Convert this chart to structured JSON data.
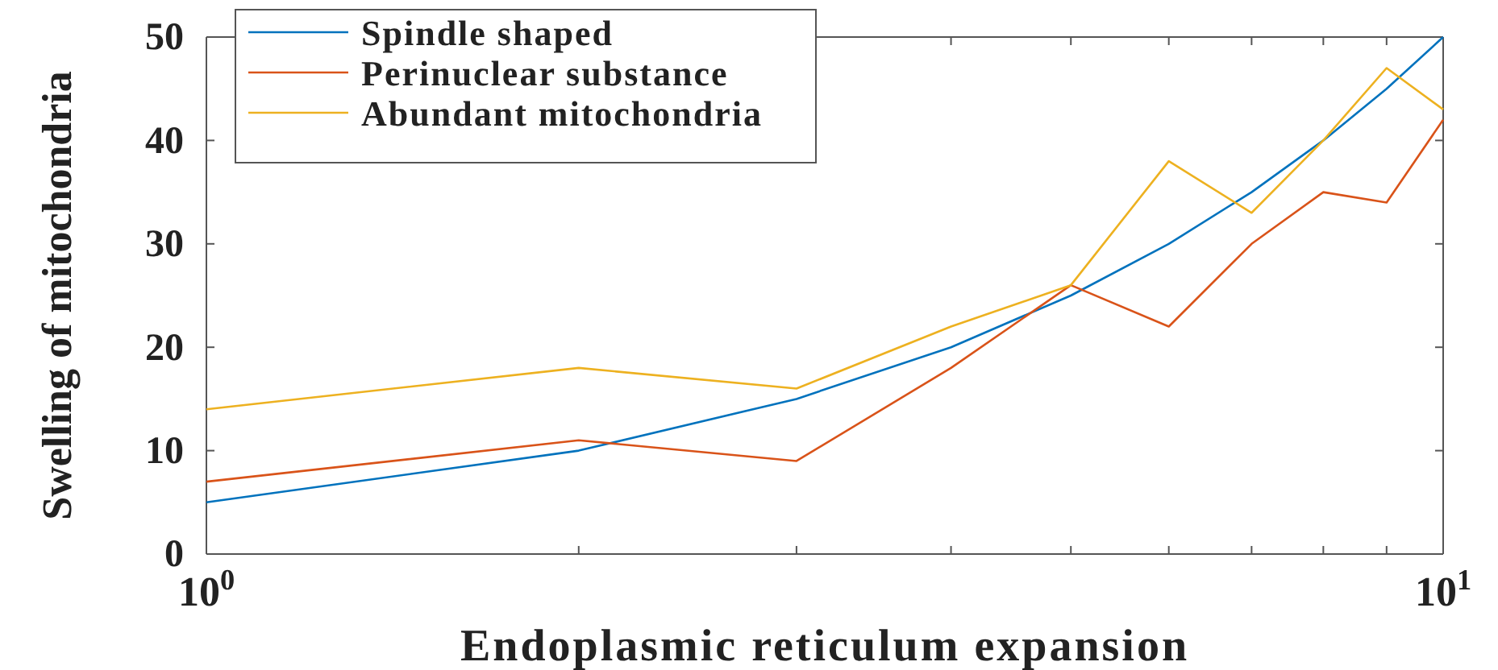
{
  "chart_data": {
    "type": "line",
    "xlabel": "Endoplasmic reticulum expansion",
    "ylabel": "Swelling of mitochondria",
    "x": [
      1,
      2,
      3,
      4,
      5,
      6,
      7,
      8,
      9,
      10
    ],
    "series": [
      {
        "name": "Spindle shaped",
        "color": "#0072bd",
        "values": [
          5,
          10,
          15,
          20,
          25,
          30,
          35,
          40,
          45,
          50
        ]
      },
      {
        "name": "Perinuclear substance",
        "color": "#d95319",
        "values": [
          7,
          11,
          9,
          18,
          26,
          22,
          30,
          35,
          34,
          42
        ]
      },
      {
        "name": "Abundant mitochondria",
        "color": "#edb120",
        "values": [
          14,
          18,
          16,
          22,
          26,
          38,
          33,
          40,
          47,
          43
        ]
      }
    ],
    "log": "x",
    "xlim": [
      1,
      10
    ],
    "xticks": [
      {
        "value": 1,
        "label": "10$^{0}$"
      },
      {
        "value": 2,
        "label": null
      },
      {
        "value": 3,
        "label": null
      },
      {
        "value": 4,
        "label": null
      },
      {
        "value": 5,
        "label": null
      },
      {
        "value": 6,
        "label": null
      },
      {
        "value": 7,
        "label": null
      },
      {
        "value": 8,
        "label": null
      },
      {
        "value": 9,
        "label": null
      },
      {
        "value": 10,
        "label": "10$^{1}$"
      }
    ],
    "ylim": [
      0,
      50
    ],
    "yticks": [
      0,
      10,
      20,
      30,
      40,
      50
    ],
    "legend": "top left",
    "marker": "none",
    "line_style": "solid",
    "grid": false
  }
}
